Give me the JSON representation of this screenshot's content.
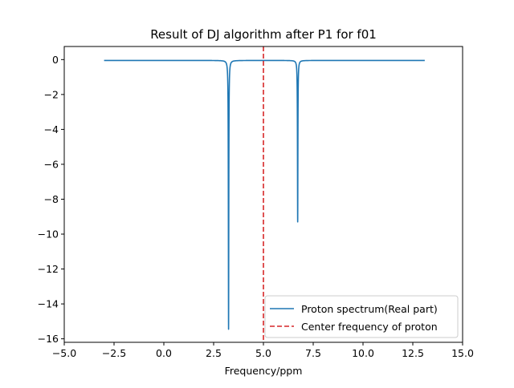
{
  "chart_data": {
    "type": "line",
    "title": "Result of DJ algorithm after P1 for f01",
    "xlabel": "Frequency/ppm",
    "ylabel": "",
    "xlim": [
      -5.0,
      15.0
    ],
    "ylim": [
      -16.2,
      0.75
    ],
    "x_ticks": [
      -5.0,
      -2.5,
      0.0,
      2.5,
      5.0,
      7.5,
      10.0,
      12.5,
      15.0
    ],
    "x_tick_labels": [
      "−5.0",
      "−2.5",
      "0.0",
      "2.5",
      "5.0",
      "7.5",
      "10.0",
      "12.5",
      "15.0"
    ],
    "y_ticks": [
      0,
      -2,
      -4,
      -6,
      -8,
      -10,
      -12,
      -14,
      -16
    ],
    "y_tick_labels": [
      "0",
      "−2",
      "−4",
      "−6",
      "−8",
      "−10",
      "−12",
      "−14",
      "−16"
    ],
    "grid": false,
    "legend_position": "lower-right",
    "series": [
      {
        "name": "Proton spectrum(Real part)",
        "color": "#1f77b4",
        "style": "solid",
        "baseline": -0.05,
        "x_range": [
          -3.0,
          13.1
        ],
        "peaks": [
          {
            "center": 3.25,
            "depth": -15.45,
            "width": 0.012
          },
          {
            "center": 6.72,
            "depth": -9.3,
            "width": 0.012
          }
        ]
      },
      {
        "name": "Center frequency of proton",
        "color": "#d62728",
        "style": "dashed",
        "vline_x": 5.0
      }
    ]
  }
}
